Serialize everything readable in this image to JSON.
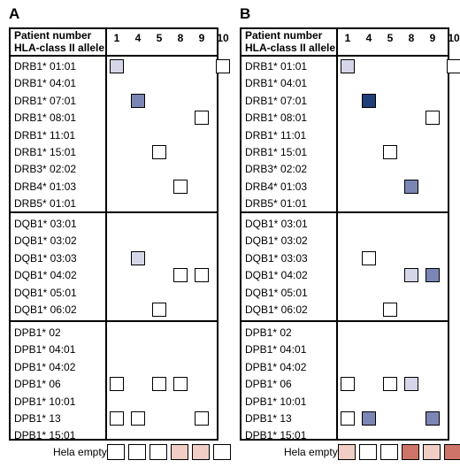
{
  "colors": {
    "empty": "#ffffff",
    "light": "#d5d7e8",
    "medium": "#7b86b5",
    "dark": "#1f3f78",
    "pink_light": "#f0cec6",
    "pink_dark": "#cf7468"
  },
  "header": {
    "line1": "Patient number",
    "line2": "HLA-class II allele"
  },
  "patients": [
    "1",
    "4",
    "5",
    "8",
    "9",
    "10"
  ],
  "groups": [
    [
      "DRB1* 01:01",
      "DRB1* 04:01",
      "DRB1* 07:01",
      "DRB1* 08:01",
      "DRB1* 11:01",
      "DRB1* 15:01",
      "DRB3* 02:02",
      "DRB4* 01:03",
      "DRB5* 01:01"
    ],
    [
      "DQB1* 03:01",
      "DQB1* 03:02",
      "DQB1* 03:03",
      "DQB1* 04:02",
      "DQB1* 05:01",
      "DQB1* 06:02"
    ],
    [
      "DPB1* 02",
      "DPB1* 04:01",
      "DPB1* 04:02",
      "DPB1* 06",
      "DPB1* 10:01",
      "DPB1* 13",
      "DPB1* 15:01"
    ]
  ],
  "hela_label": "Hela empty",
  "panels": [
    {
      "letter": "A",
      "cells": [
        [
          0,
          0,
          0,
          "light"
        ],
        [
          0,
          0,
          5,
          "empty"
        ],
        [
          0,
          2,
          1,
          "medium"
        ],
        [
          0,
          3,
          4,
          "empty"
        ],
        [
          0,
          5,
          2,
          "empty"
        ],
        [
          0,
          7,
          3,
          "empty"
        ],
        [
          1,
          2,
          1,
          "light"
        ],
        [
          1,
          3,
          3,
          "empty"
        ],
        [
          1,
          3,
          4,
          "empty"
        ],
        [
          1,
          5,
          2,
          "empty"
        ],
        [
          2,
          3,
          0,
          "empty"
        ],
        [
          2,
          3,
          2,
          "empty"
        ],
        [
          2,
          3,
          3,
          "empty"
        ],
        [
          2,
          5,
          0,
          "empty"
        ],
        [
          2,
          5,
          1,
          "empty"
        ],
        [
          2,
          5,
          4,
          "empty"
        ]
      ],
      "hela": [
        "empty",
        "empty",
        "empty",
        "pink_light",
        "pink_light",
        "empty"
      ]
    },
    {
      "letter": "B",
      "cells": [
        [
          0,
          0,
          0,
          "light"
        ],
        [
          0,
          0,
          5,
          "empty"
        ],
        [
          0,
          2,
          1,
          "dark"
        ],
        [
          0,
          3,
          4,
          "empty"
        ],
        [
          0,
          5,
          2,
          "empty"
        ],
        [
          0,
          7,
          3,
          "medium"
        ],
        [
          1,
          2,
          1,
          "empty"
        ],
        [
          1,
          3,
          3,
          "light"
        ],
        [
          1,
          3,
          4,
          "medium"
        ],
        [
          1,
          5,
          2,
          "empty"
        ],
        [
          2,
          3,
          0,
          "empty"
        ],
        [
          2,
          3,
          2,
          "empty"
        ],
        [
          2,
          3,
          3,
          "light"
        ],
        [
          2,
          5,
          0,
          "empty"
        ],
        [
          2,
          5,
          1,
          "medium"
        ],
        [
          2,
          5,
          4,
          "medium"
        ]
      ],
      "hela": [
        "pink_light",
        "empty",
        "empty",
        "pink_dark",
        "pink_light",
        "pink_dark"
      ]
    }
  ]
}
